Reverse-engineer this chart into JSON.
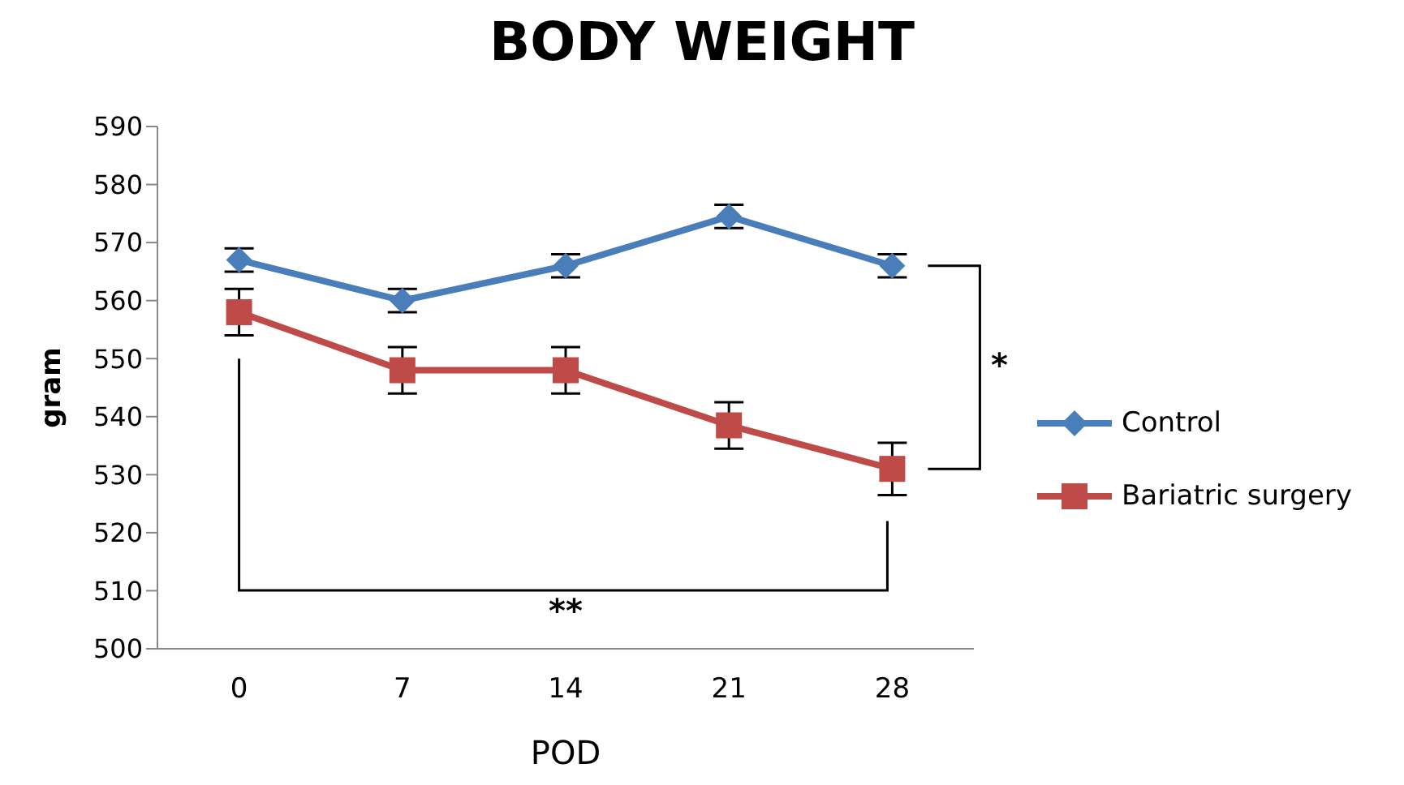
{
  "chart_data": {
    "type": "line",
    "title": "BODY WEIGHT",
    "xlabel": "POD",
    "ylabel": "gram",
    "categories": [
      "0",
      "7",
      "14",
      "21",
      "28"
    ],
    "series": [
      {
        "name": "Control",
        "color": "#4a7ebb",
        "marker": "diamond",
        "values": [
          567,
          560,
          566,
          574.5,
          566
        ],
        "errors": [
          2,
          2,
          2,
          2,
          2
        ]
      },
      {
        "name": "Bariatric surgery",
        "color": "#be4b48",
        "marker": "square",
        "values": [
          558,
          548,
          548,
          538.5,
          531
        ],
        "errors": [
          4,
          4,
          4,
          4,
          4.5
        ]
      }
    ],
    "ylim": [
      500,
      590
    ],
    "yticks": [
      500,
      510,
      520,
      530,
      540,
      550,
      560,
      570,
      580,
      590
    ],
    "grid": false,
    "legend": "right",
    "annotations": [
      "*",
      "**"
    ]
  }
}
